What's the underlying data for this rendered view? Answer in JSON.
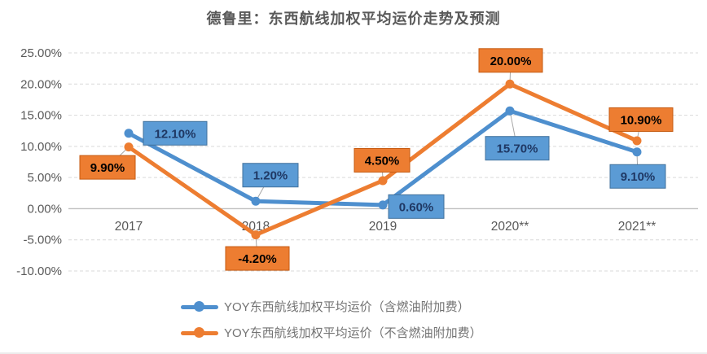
{
  "page": {
    "title": "德鲁里：东西航线加权平均运价走势及预测"
  },
  "chart_data": {
    "type": "line",
    "title": "德鲁里：东西航线加权平均运价走势及预测",
    "categories": [
      "2017",
      "2018",
      "2019",
      "2020**",
      "2021**"
    ],
    "series": [
      {
        "name": "YOY东西航线加权平均运价（含燃油附加费）",
        "color": "#4e8fce",
        "label_bg": "#5b9bd5",
        "label_border": "#41719c",
        "label_text_color": "#1f3864",
        "values": [
          12.1,
          1.2,
          0.6,
          15.7,
          9.1
        ],
        "labels": [
          "12.10%",
          "1.20%",
          "0.60%",
          "15.70%",
          "9.10%"
        ]
      },
      {
        "name": "YOY东西航线加权平均运价（不含燃油附加费）",
        "color": "#ed7d31",
        "label_bg": "#ed7d31",
        "label_border": "#c55a11",
        "label_text_color": "#000000",
        "values": [
          9.9,
          -4.2,
          4.5,
          20.0,
          10.9
        ],
        "labels": [
          "9.90%",
          "-4.20%",
          "4.50%",
          "20.00%",
          "10.90%"
        ]
      }
    ],
    "ylim": [
      -10,
      25
    ],
    "ytick_step": 5,
    "ytick_labels": [
      "25.00%",
      "20.00%",
      "15.00%",
      "10.00%",
      "5.00%",
      "0.00%",
      "-5.00%",
      "-10.00%"
    ],
    "grid": "horizontal dashed gridlines, solid zero axis line",
    "legend_position": "bottom",
    "colors": {
      "axis_text": "#595959",
      "title_text": "#595959",
      "gridline": "#d9d9d9",
      "zero_line": "#bfbfbf",
      "leader_line": "#a6a6a6",
      "legend_text": "#737373",
      "background": "#ffffff"
    }
  }
}
